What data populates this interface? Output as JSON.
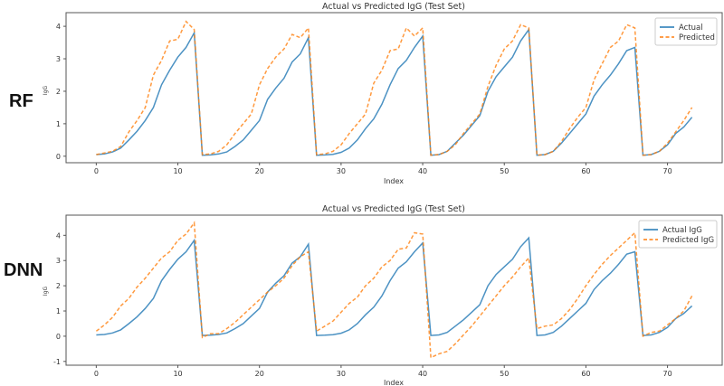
{
  "chart_data": [
    {
      "type": "line",
      "side_label": "RF",
      "title": "Actual vs Predicted IgG (Test Set)",
      "xlabel": "Index",
      "ylabel": "IgG",
      "xlim": [
        -3.7,
        76.7
      ],
      "ylim": [
        -0.2,
        4.42
      ],
      "xticks": [
        0,
        10,
        20,
        30,
        40,
        50,
        60,
        70
      ],
      "yticks": [
        0,
        1,
        2,
        3,
        4
      ],
      "grid": false,
      "legend": "top-right",
      "series": [
        {
          "name": "Actual",
          "color": "#1f77b4",
          "style": "solid",
          "values": [
            0.05,
            0.07,
            0.13,
            0.25,
            0.5,
            0.77,
            1.1,
            1.5,
            2.2,
            2.65,
            3.05,
            3.35,
            3.8,
            0.03,
            0.04,
            0.07,
            0.13,
            0.3,
            0.5,
            0.8,
            1.1,
            1.75,
            2.1,
            2.4,
            2.9,
            3.15,
            3.65,
            0.03,
            0.04,
            0.06,
            0.12,
            0.25,
            0.5,
            0.85,
            1.15,
            1.6,
            2.2,
            2.7,
            2.95,
            3.35,
            3.7,
            0.03,
            0.05,
            0.15,
            0.4,
            0.65,
            0.95,
            1.25,
            2.0,
            2.45,
            2.75,
            3.05,
            3.55,
            3.9,
            0.03,
            0.05,
            0.15,
            0.4,
            0.7,
            1.0,
            1.3,
            1.85,
            2.2,
            2.5,
            2.85,
            3.25,
            3.35,
            0.03,
            0.05,
            0.15,
            0.35,
            0.7,
            0.9,
            1.2
          ]
        },
        {
          "name": "Predicted",
          "color": "#ff7f0e",
          "style": "dashed",
          "values": [
            0.05,
            0.1,
            0.15,
            0.3,
            0.75,
            1.1,
            1.5,
            2.5,
            2.95,
            3.55,
            3.6,
            4.15,
            3.9,
            0.05,
            0.07,
            0.15,
            0.35,
            0.7,
            1.0,
            1.3,
            2.2,
            2.7,
            3.05,
            3.3,
            3.75,
            3.65,
            3.95,
            0.05,
            0.07,
            0.15,
            0.35,
            0.7,
            1.0,
            1.3,
            2.25,
            2.65,
            3.25,
            3.3,
            3.95,
            3.7,
            3.95,
            0.03,
            0.05,
            0.15,
            0.35,
            0.7,
            1.0,
            1.3,
            2.15,
            2.8,
            3.3,
            3.55,
            4.05,
            3.95,
            0.03,
            0.05,
            0.15,
            0.45,
            0.85,
            1.2,
            1.5,
            2.35,
            2.85,
            3.35,
            3.55,
            4.05,
            3.95,
            0.03,
            0.05,
            0.15,
            0.4,
            0.75,
            1.1,
            1.5
          ]
        }
      ]
    },
    {
      "type": "line",
      "side_label": "DNN",
      "title": "Actual vs Predicted IgG (Test Set)",
      "xlabel": "Index",
      "ylabel": "IgG",
      "xlim": [
        -3.7,
        76.7
      ],
      "ylim": [
        -1.15,
        4.8
      ],
      "xticks": [
        0,
        10,
        20,
        30,
        40,
        50,
        60,
        70
      ],
      "yticks": [
        -1,
        0,
        1,
        2,
        3,
        4
      ],
      "grid": false,
      "legend": "top-right",
      "series": [
        {
          "name": "Actual IgG",
          "color": "#1f77b4",
          "style": "solid",
          "values": [
            0.05,
            0.07,
            0.13,
            0.25,
            0.5,
            0.77,
            1.1,
            1.5,
            2.2,
            2.65,
            3.05,
            3.35,
            3.8,
            0.03,
            0.04,
            0.07,
            0.13,
            0.3,
            0.5,
            0.8,
            1.1,
            1.75,
            2.1,
            2.4,
            2.9,
            3.15,
            3.65,
            0.03,
            0.04,
            0.06,
            0.12,
            0.25,
            0.5,
            0.85,
            1.15,
            1.6,
            2.2,
            2.7,
            2.95,
            3.35,
            3.7,
            0.03,
            0.05,
            0.15,
            0.4,
            0.65,
            0.95,
            1.25,
            2.0,
            2.45,
            2.75,
            3.05,
            3.55,
            3.9,
            0.03,
            0.05,
            0.15,
            0.4,
            0.7,
            1.0,
            1.3,
            1.85,
            2.2,
            2.5,
            2.85,
            3.25,
            3.35,
            0.03,
            0.05,
            0.15,
            0.35,
            0.7,
            0.9,
            1.2
          ]
        },
        {
          "name": "Predicted IgG",
          "color": "#ff7f0e",
          "style": "dashed",
          "values": [
            0.2,
            0.45,
            0.75,
            1.2,
            1.5,
            1.95,
            2.3,
            2.7,
            3.1,
            3.35,
            3.8,
            4.05,
            4.5,
            -0.05,
            0.1,
            0.1,
            0.3,
            0.55,
            0.85,
            1.15,
            1.45,
            1.75,
            2.0,
            2.3,
            2.8,
            3.15,
            3.35,
            0.2,
            0.4,
            0.6,
            0.95,
            1.3,
            1.55,
            2.0,
            2.3,
            2.75,
            3.0,
            3.45,
            3.5,
            4.1,
            4.05,
            -0.85,
            -0.7,
            -0.6,
            -0.3,
            0.05,
            0.4,
            0.8,
            1.2,
            1.6,
            2.0,
            2.35,
            2.75,
            3.1,
            0.3,
            0.4,
            0.45,
            0.7,
            1.05,
            1.5,
            2.0,
            2.45,
            2.85,
            3.2,
            3.5,
            3.8,
            4.1,
            0.0,
            0.15,
            0.2,
            0.45,
            0.7,
            1.0,
            1.6
          ]
        }
      ]
    }
  ]
}
